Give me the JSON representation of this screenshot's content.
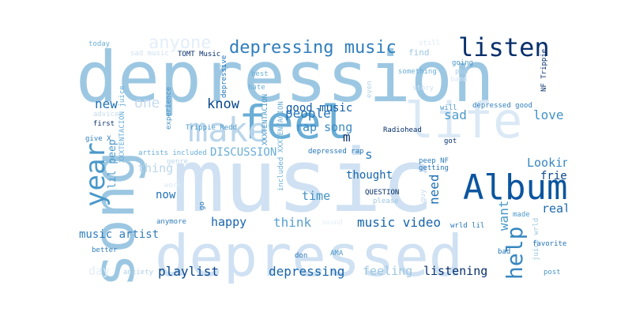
{
  "palette": "Blues",
  "words": [
    {
      "id": "music",
      "text": "music",
      "color": "#cfe1f2",
      "vertical": false
    },
    {
      "id": "depression",
      "text": "depression",
      "color": "#9cc7e2",
      "vertical": false
    },
    {
      "id": "depressed",
      "text": "depressed",
      "color": "#cfe1f2",
      "vertical": false
    },
    {
      "id": "song",
      "text": "song",
      "color": "#9cc7e2",
      "vertical": true
    },
    {
      "id": "feel",
      "text": "feel",
      "color": "#6aaed6",
      "vertical": false
    },
    {
      "id": "life",
      "text": "life",
      "color": "#dbe9f6",
      "vertical": false
    },
    {
      "id": "Album",
      "text": "Album",
      "color": "#0b559f",
      "vertical": false
    },
    {
      "id": "make",
      "text": "make",
      "color": "#bad6eb",
      "vertical": false
    },
    {
      "id": "listen",
      "text": "listen",
      "color": "#08306b",
      "vertical": false
    },
    {
      "id": "depressing-music",
      "text": "depressing music",
      "color": "#2f7ebc",
      "vertical": false
    },
    {
      "id": "year",
      "text": "year",
      "color": "#4a98c9",
      "vertical": true
    },
    {
      "id": "help",
      "text": "help",
      "color": "#3787c0",
      "vertical": true
    },
    {
      "id": "anyone",
      "text": "anyone",
      "color": "#e3eef9",
      "vertical": false
    },
    {
      "id": "know",
      "text": "know",
      "color": "#08468b",
      "vertical": false
    },
    {
      "id": "one",
      "text": "one",
      "color": "#c6dbef",
      "vertical": false
    },
    {
      "id": "new",
      "text": "new",
      "color": "#2171b5",
      "vertical": false
    },
    {
      "id": "good-music",
      "text": "good music",
      "color": "#0f5aa3",
      "vertical": false
    },
    {
      "id": "people",
      "text": "people",
      "color": "#2575b7",
      "vertical": false
    },
    {
      "id": "sad",
      "text": "sad",
      "color": "#4d99ca",
      "vertical": false
    },
    {
      "id": "love",
      "text": "love",
      "color": "#4292c6",
      "vertical": false
    },
    {
      "id": "rap-song",
      "text": "rap song",
      "color": "#3a8ac2",
      "vertical": false
    },
    {
      "id": "m",
      "text": "m",
      "color": "#08306b",
      "vertical": false
    },
    {
      "id": "s",
      "text": "s",
      "color": "#2a7ab9",
      "vertical": false
    },
    {
      "id": "Looking",
      "text": "Looking",
      "color": "#3787c0",
      "vertical": false
    },
    {
      "id": "friend",
      "text": "friend",
      "color": "#08468b",
      "vertical": false
    },
    {
      "id": "need",
      "text": "need",
      "color": "#2171b5",
      "vertical": true
    },
    {
      "id": "thought",
      "text": "thought",
      "color": "#1764ab",
      "vertical": false
    },
    {
      "id": "time",
      "text": "time",
      "color": "#4292c6",
      "vertical": false
    },
    {
      "id": "really",
      "text": "really",
      "color": "#1c6aaf",
      "vertical": false
    },
    {
      "id": "want",
      "text": "want",
      "color": "#4a98c9",
      "vertical": true
    },
    {
      "id": "happy",
      "text": "happy",
      "color": "#1764ab",
      "vertical": false
    },
    {
      "id": "think",
      "text": "think",
      "color": "#58a1cf",
      "vertical": false
    },
    {
      "id": "music-video",
      "text": "music video",
      "color": "#1764ab",
      "vertical": false
    },
    {
      "id": "music-artist",
      "text": "music artist",
      "color": "#2f7ebc",
      "vertical": false
    },
    {
      "id": "playlist",
      "text": "playlist",
      "color": "#08468b",
      "vertical": false
    },
    {
      "id": "depressing",
      "text": "depressing",
      "color": "#1764ab",
      "vertical": false
    },
    {
      "id": "feeling",
      "text": "feeling",
      "color": "#9cc7e2",
      "vertical": false
    },
    {
      "id": "listening",
      "text": "listening",
      "color": "#08306b",
      "vertical": false
    },
    {
      "id": "day",
      "text": "day",
      "color": "#e3eef9",
      "vertical": false
    },
    {
      "id": "thing",
      "text": "thing",
      "color": "#bad6eb",
      "vertical": false
    },
    {
      "id": "now",
      "text": "now",
      "color": "#2171b5",
      "vertical": false
    },
    {
      "id": "DISCUSSION",
      "text": "DISCUSSION",
      "color": "#6aaed6",
      "vertical": false
    },
    {
      "id": "lil-peep",
      "text": "lil peep",
      "color": "#4a98c9",
      "vertical": true
    },
    {
      "id": "today",
      "text": "today",
      "color": "#6aaed6",
      "vertical": false
    },
    {
      "id": "sad-music",
      "text": "sad music",
      "color": "#cfe1f2",
      "vertical": false
    },
    {
      "id": "TOMT-Music",
      "text": "TOMT Music",
      "color": "#08306b",
      "vertical": false
    },
    {
      "id": "XXXTENTACION-juice",
      "text": "XXXTENTACION juice",
      "color": "#6aaed6",
      "vertical": true
    },
    {
      "id": "depressive",
      "text": "depressive",
      "color": "#2575b7",
      "vertical": true
    },
    {
      "id": "experience",
      "text": "experience",
      "color": "#4292c6",
      "vertical": true
    },
    {
      "id": "best",
      "text": "best",
      "color": "#6aaed6",
      "vertical": false
    },
    {
      "id": "hate",
      "text": "hate",
      "color": "#6aaed6",
      "vertical": false
    },
    {
      "id": "still",
      "text": "still",
      "color": "#dbe9f6",
      "vertical": false
    },
    {
      "id": "find",
      "text": "find",
      "color": "#9cc7e2",
      "vertical": false
    },
    {
      "id": "even",
      "text": "even",
      "color": "#b0d2e7",
      "vertical": true
    },
    {
      "id": "something",
      "text": "something",
      "color": "#6aaed6",
      "vertical": false
    },
    {
      "id": "going",
      "text": "going",
      "color": "#4a98c9",
      "vertical": false
    },
    {
      "id": "pop",
      "text": "pop",
      "color": "#b0d2e7",
      "vertical": false
    },
    {
      "id": "NF-Trippie",
      "text": "NF Trippie",
      "color": "#08306b",
      "vertical": true
    },
    {
      "id": "story",
      "text": "story",
      "color": "#cfe1f2",
      "vertical": false
    },
    {
      "id": "band",
      "text": "band",
      "color": "#dbe9f6",
      "vertical": false
    },
    {
      "id": "will",
      "text": "will",
      "color": "#4a98c9",
      "vertical": false
    },
    {
      "id": "depressed-good",
      "text": "depressed good",
      "color": "#2f7ebc",
      "vertical": false
    },
    {
      "id": "advice",
      "text": "advice",
      "color": "#c6dbef",
      "vertical": false
    },
    {
      "id": "first",
      "text": "first",
      "color": "#08306b",
      "vertical": false
    },
    {
      "id": "Trippie-Redd",
      "text": "Trippie Redd",
      "color": "#4a98c9",
      "vertical": false
    },
    {
      "id": "XXXTENTACION",
      "text": "XXXTENTACION",
      "color": "#4a98c9",
      "vertical": true
    },
    {
      "id": "give-X",
      "text": "give X",
      "color": "#2f7ebc",
      "vertical": false
    },
    {
      "id": "Radiohead",
      "text": "Radiohead",
      "color": "#08306b",
      "vertical": false
    },
    {
      "id": "got",
      "text": "got",
      "color": "#08306b",
      "vertical": false
    },
    {
      "id": "artists-included",
      "text": "artists included",
      "color": "#6aaed6",
      "vertical": false
    },
    {
      "id": "depressed-rap",
      "text": "depressed rap",
      "color": "#2575b7",
      "vertical": false
    },
    {
      "id": "genre",
      "text": "genre",
      "color": "#bad6eb",
      "vertical": false
    },
    {
      "id": "included-XXXTENTACION",
      "text": "included XXXTENTACION",
      "color": "#6aaed6",
      "vertical": true
    },
    {
      "id": "peep-NF",
      "text": "peep NF",
      "color": "#2f7ebc",
      "vertical": false
    },
    {
      "id": "getting",
      "text": "getting",
      "color": "#2575b7",
      "vertical": false
    },
    {
      "id": "work",
      "text": "work",
      "color": "#dbe9f6",
      "vertical": false
    },
    {
      "id": "go",
      "text": "go",
      "color": "#2575b7",
      "vertical": true
    },
    {
      "id": "QUESTION",
      "text": "QUESTION",
      "color": "#08306b",
      "vertical": false
    },
    {
      "id": "please",
      "text": "please",
      "color": "#9cc7e2",
      "vertical": false
    },
    {
      "id": "guy",
      "text": "guy",
      "color": "#c6dbef",
      "vertical": true
    },
    {
      "id": "made",
      "text": "made",
      "color": "#4a98c9",
      "vertical": false
    },
    {
      "id": "anymore",
      "text": "anymore",
      "color": "#2f7ebc",
      "vertical": false
    },
    {
      "id": "sound",
      "text": "sound",
      "color": "#e3eef9",
      "vertical": false
    },
    {
      "id": "wrld-lil",
      "text": "wrld lil",
      "color": "#2575b7",
      "vertical": false
    },
    {
      "id": "juice-wrld",
      "text": "juice wrld",
      "color": "#9cc7e2",
      "vertical": true
    },
    {
      "id": "favorite",
      "text": "favorite",
      "color": "#2575b7",
      "vertical": false
    },
    {
      "id": "better",
      "text": "better",
      "color": "#2f7ebc",
      "vertical": false
    },
    {
      "id": "don",
      "text": "don",
      "color": "#2575b7",
      "vertical": false
    },
    {
      "id": "AMA",
      "text": "AMA",
      "color": "#4a98c9",
      "vertical": false
    },
    {
      "id": "bad",
      "text": "bad",
      "color": "#2575b7",
      "vertical": false
    },
    {
      "id": "anxiety",
      "text": "anxiety",
      "color": "#b0d2e7",
      "vertical": false
    },
    {
      "id": "post",
      "text": "post",
      "color": "#4a98c9",
      "vertical": false
    }
  ]
}
